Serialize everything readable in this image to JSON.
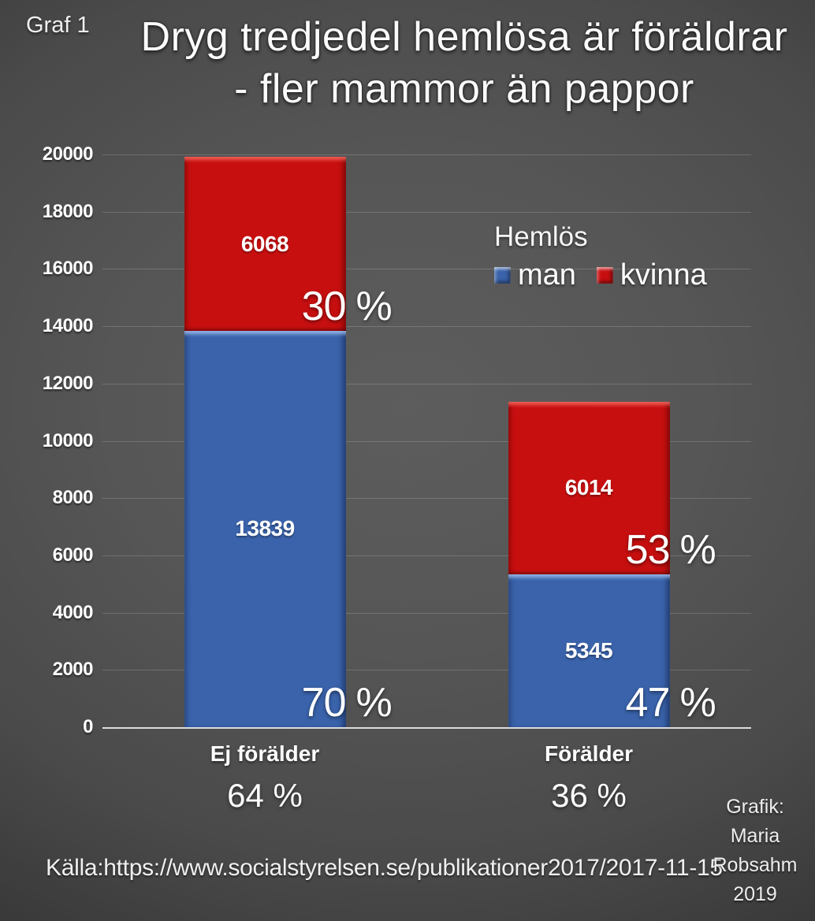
{
  "graf_label": "Graf 1",
  "title_line1": "Dryg tredjedel hemlösa är föräldrar",
  "title_line2": "- fler mammor än pappor",
  "legend": {
    "title": "Hemlös",
    "items": [
      {
        "label": "man",
        "color": "#3a63ab"
      },
      {
        "label": "kvinna",
        "color": "#c80f10"
      }
    ]
  },
  "chart_data": {
    "type": "bar",
    "stacked": true,
    "title": "Dryg tredjedel hemlösa är föräldrar - fler mammor än pappor",
    "categories": [
      "Ej förälder",
      "Förälder"
    ],
    "category_pct_labels": [
      "64 %",
      "36 %"
    ],
    "series": [
      {
        "name": "man",
        "color": "#3a63ab",
        "values": [
          13839,
          5345
        ],
        "pct_labels": [
          "70 %",
          "47 %"
        ]
      },
      {
        "name": "kvinna",
        "color": "#c80f10",
        "values": [
          6068,
          6014
        ],
        "pct_labels": [
          "30 %",
          "53 %"
        ]
      }
    ],
    "ylim": [
      0,
      20000
    ],
    "ytick_step": 2000,
    "yticks": [
      0,
      2000,
      4000,
      6000,
      8000,
      10000,
      12000,
      14000,
      16000,
      18000,
      20000
    ],
    "grid": true,
    "legend_position": "upper-right-inside"
  },
  "source": "Källa:https://www.socialstyrelsen.se/publikationer2017/2017-11-15",
  "credit_lines": [
    "Grafik:",
    "Maria",
    "Robsahm",
    "2019"
  ]
}
